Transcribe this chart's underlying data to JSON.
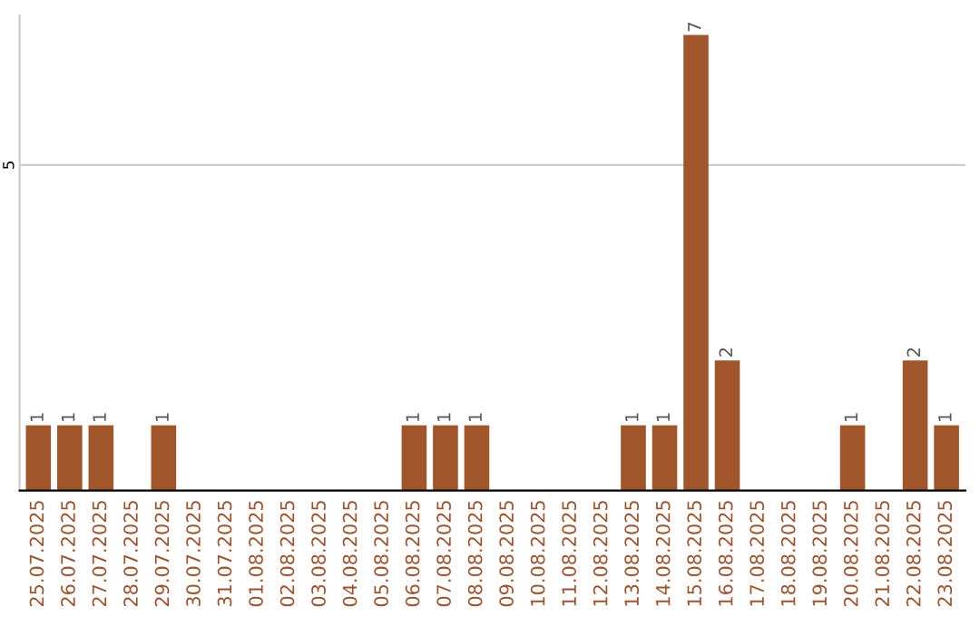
{
  "chart_data": {
    "type": "bar",
    "categories": [
      "25.07.2025",
      "26.07.2025",
      "27.07.2025",
      "28.07.2025",
      "29.07.2025",
      "30.07.2025",
      "31.07.2025",
      "01.08.2025",
      "02.08.2025",
      "03.08.2025",
      "04.08.2025",
      "05.08.2025",
      "06.08.2025",
      "07.08.2025",
      "08.08.2025",
      "09.08.2025",
      "10.08.2025",
      "11.08.2025",
      "12.08.2025",
      "13.08.2025",
      "14.08.2025",
      "15.08.2025",
      "16.08.2025",
      "17.08.2025",
      "18.08.2025",
      "19.08.2025",
      "20.08.2025",
      "21.08.2025",
      "22.08.2025",
      "23.08.2025"
    ],
    "values": [
      1,
      1,
      1,
      0,
      1,
      0,
      0,
      0,
      0,
      0,
      0,
      0,
      1,
      1,
      1,
      0,
      0,
      0,
      0,
      1,
      1,
      7,
      2,
      0,
      0,
      0,
      1,
      0,
      2,
      1
    ],
    "value_labels": [
      "1",
      "1",
      "1",
      null,
      "1",
      null,
      null,
      null,
      null,
      null,
      null,
      null,
      "1",
      "1",
      "1",
      null,
      null,
      null,
      null,
      "1",
      "1",
      "7",
      "2",
      null,
      null,
      null,
      "1",
      null,
      "2",
      "1"
    ],
    "color": "#a0562a",
    "ylim": [
      0,
      7.3
    ],
    "yticks": [
      5
    ],
    "grid": "y"
  }
}
